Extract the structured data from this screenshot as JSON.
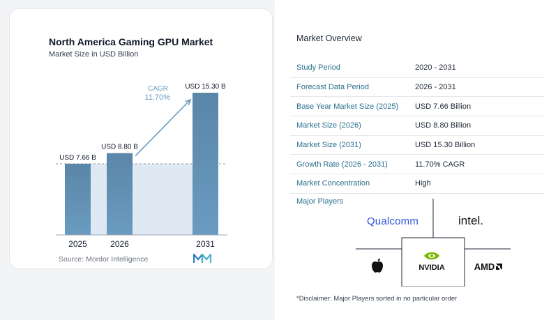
{
  "chart_data": {
    "type": "bar",
    "title": "North America Gaming GPU Market",
    "subtitle": "Market Size in USD Billion",
    "categories": [
      "2025",
      "2026",
      "2031"
    ],
    "values": [
      7.66,
      8.8,
      15.3
    ],
    "value_labels": [
      "USD 7.66 B",
      "USD 8.80 B",
      "USD 15.30 B"
    ],
    "ylim": [
      0,
      16.5
    ],
    "grid": false,
    "annotation": {
      "label": "CAGR",
      "value": "11.70%"
    },
    "source": "Source: Mordor Intelligence",
    "colors": {
      "bar": "#6a9bc0",
      "bar_top": "#5a86a8",
      "shade": "#dfe9f3",
      "arrow": "#6a9bc0"
    }
  },
  "overview": {
    "title": "Market Overview",
    "rows": [
      {
        "label": "Study Period",
        "value": "2020 - 2031"
      },
      {
        "label": "Forecast Data Period",
        "value": "2026 - 2031"
      },
      {
        "label": "Base Year Market Size (2025)",
        "value": "USD 7.66 Billion"
      },
      {
        "label": "Market Size (2026)",
        "value": "USD 8.80 Billion"
      },
      {
        "label": "Market Size (2031)",
        "value": "USD 15.30 Billion"
      },
      {
        "label": "Growth Rate (2026 - 2031)",
        "value": "11.70% CAGR"
      },
      {
        "label": "Market Concentration",
        "value": "High"
      }
    ]
  },
  "players": {
    "label": "Major Players",
    "logos": [
      {
        "name": "Qualcomm",
        "text": "Qualcomm",
        "color": "#3253dc"
      },
      {
        "name": "Intel",
        "text": "intel.",
        "color": "#111111"
      },
      {
        "name": "Apple",
        "text": "",
        "color": "#111111"
      },
      {
        "name": "NVIDIA",
        "text": "NVIDIA",
        "color": "#76b900"
      },
      {
        "name": "AMD",
        "text": "AMD",
        "color": "#111111"
      }
    ]
  },
  "disclaimer": "*Disclaimer: Major Players sorted in no particular order"
}
